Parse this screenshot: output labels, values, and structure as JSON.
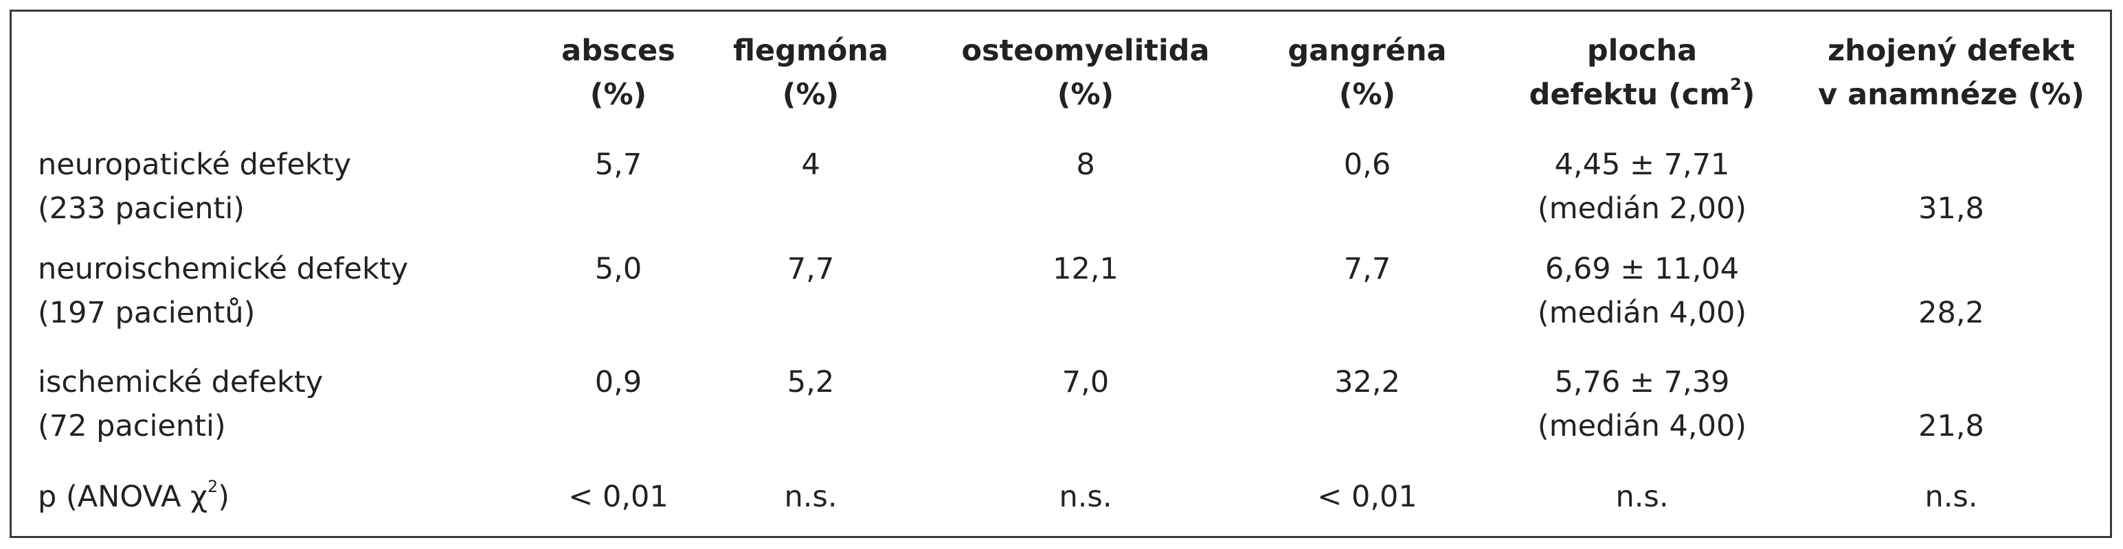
{
  "table": {
    "columns": [
      {
        "line1": "absces",
        "line2": "(%)"
      },
      {
        "line1": "flegmóna",
        "line2": "(%)"
      },
      {
        "line1": "osteomyelitida",
        "line2": "(%)"
      },
      {
        "line1": "gangréna",
        "line2": "(%)"
      },
      {
        "line1": "plocha",
        "line2": "defektu (cm",
        "sup": "2",
        "line2_end": ")"
      },
      {
        "line1": "zhojený defekt",
        "line2": "v anamnéze (%)"
      }
    ],
    "rows": [
      {
        "label1": "neuropatické defekty",
        "label2": "(233 pacienti)",
        "values": [
          "5,7",
          "4",
          "8",
          "0,6"
        ],
        "area1": "4,45 ± 7,71",
        "area2": "(medián 2,00)",
        "healed": "31,8"
      },
      {
        "label1": "neuroischemické defekty",
        "label2": "(197 pacientů)",
        "values": [
          "5,0",
          "7,7",
          "12,1",
          "7,7"
        ],
        "area1": "6,69 ± 11,04",
        "area2": "(medián 4,00)",
        "healed": "28,2"
      },
      {
        "label1": "ischemické defekty",
        "label2": "(72 pacienti)",
        "values": [
          "0,9",
          "5,2",
          "7,0",
          "32,2"
        ],
        "area1": "5,76 ± 7,39",
        "area2": "(medián 4,00)",
        "healed": "21,8"
      }
    ],
    "p_row": {
      "label_prefix": "p (ANOVA χ",
      "label_sup": "2",
      "label_suffix": ")",
      "values": [
        "< 0,01",
        "n.s.",
        "n.s.",
        "< 0,01",
        "n.s.",
        "n.s."
      ]
    }
  }
}
